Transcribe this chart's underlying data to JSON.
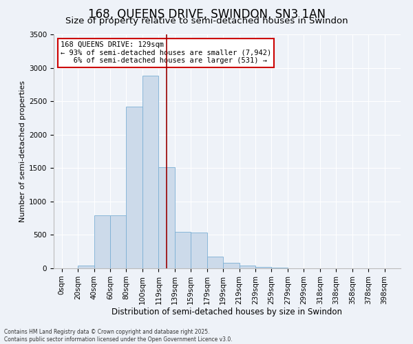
{
  "title": "168, QUEENS DRIVE, SWINDON, SN3 1AN",
  "subtitle": "Size of property relative to semi-detached houses in Swindon",
  "xlabel": "Distribution of semi-detached houses by size in Swindon",
  "ylabel": "Number of semi-detached properties",
  "bar_categories": [
    "0sqm",
    "20sqm",
    "40sqm",
    "60sqm",
    "80sqm",
    "100sqm",
    "119sqm",
    "139sqm",
    "159sqm",
    "179sqm",
    "199sqm",
    "219sqm",
    "239sqm",
    "259sqm",
    "279sqm",
    "299sqm",
    "318sqm",
    "338sqm",
    "358sqm",
    "378sqm",
    "398sqm"
  ],
  "bar_values": [
    5,
    45,
    790,
    790,
    2420,
    2880,
    1510,
    550,
    540,
    180,
    85,
    38,
    18,
    8,
    4,
    4,
    2,
    1,
    1,
    0,
    0
  ],
  "bar_color": "#ccdaea",
  "bar_edge_color": "#7bafd4",
  "vline_color": "#990000",
  "annotation_line1": "168 QUEENS DRIVE: 129sqm",
  "annotation_line2": "← 93% of semi-detached houses are smaller (7,942)",
  "annotation_line3": "   6% of semi-detached houses are larger (531) →",
  "annotation_box_color": "#ffffff",
  "annotation_box_edge_color": "#cc0000",
  "ylim": [
    0,
    3500
  ],
  "yticks": [
    0,
    500,
    1000,
    1500,
    2000,
    2500,
    3000,
    3500
  ],
  "background_color": "#eef2f8",
  "footer": "Contains HM Land Registry data © Crown copyright and database right 2025.\nContains public sector information licensed under the Open Government Licence v3.0.",
  "title_fontsize": 12,
  "subtitle_fontsize": 9.5,
  "xlabel_fontsize": 8.5,
  "ylabel_fontsize": 8,
  "tick_fontsize": 7.5,
  "annot_fontsize": 7.5
}
